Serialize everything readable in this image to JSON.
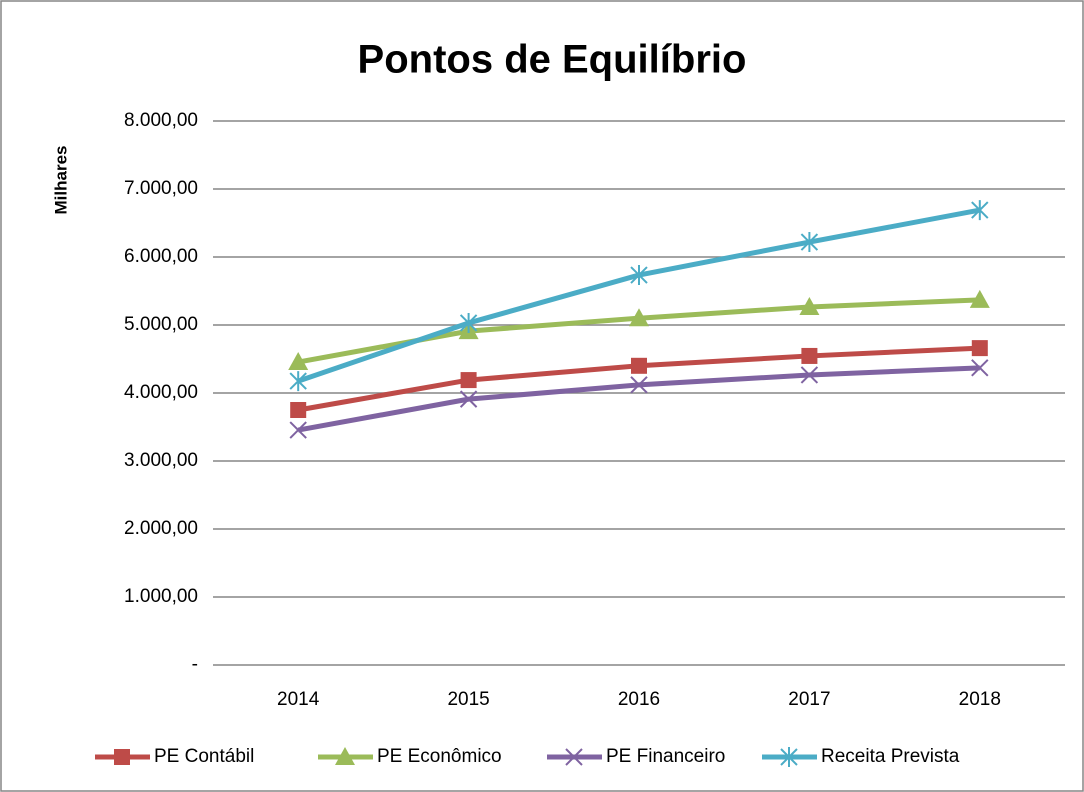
{
  "chart_data": {
    "type": "line",
    "title": "Pontos de Equilíbrio",
    "y_label": "Milhares",
    "categories": [
      "2014",
      "2015",
      "2016",
      "2017",
      "2018"
    ],
    "series": [
      {
        "name": "PE Contábil",
        "color": "#be4b48",
        "marker": "square",
        "values": [
          3750,
          4190,
          4400,
          4545,
          4660
        ]
      },
      {
        "name": "PE Econômico",
        "color": "#9bbb59",
        "marker": "triangle",
        "values": [
          4455,
          4910,
          5100,
          5265,
          5370
        ]
      },
      {
        "name": "PE Financeiro",
        "color": "#7f63a1",
        "marker": "x",
        "values": [
          3455,
          3910,
          4120,
          4265,
          4370
        ]
      },
      {
        "name": "Receita Prevista",
        "color": "#4bacc6",
        "marker": "asterisk",
        "values": [
          4175,
          5030,
          5735,
          6220,
          6690
        ]
      }
    ],
    "ylim": [
      0,
      8000
    ],
    "yticks": [
      {
        "value": 0,
        "label": "-"
      },
      {
        "value": 1000,
        "label": "1.000,00"
      },
      {
        "value": 2000,
        "label": "2.000,00"
      },
      {
        "value": 3000,
        "label": "3.000,00"
      },
      {
        "value": 4000,
        "label": "4.000,00"
      },
      {
        "value": 5000,
        "label": "5.000,00"
      },
      {
        "value": 6000,
        "label": "6.000,00"
      },
      {
        "value": 7000,
        "label": "7.000,00"
      },
      {
        "value": 8000,
        "label": "8.000,00"
      }
    ],
    "grid": true,
    "legend": "bottom"
  }
}
